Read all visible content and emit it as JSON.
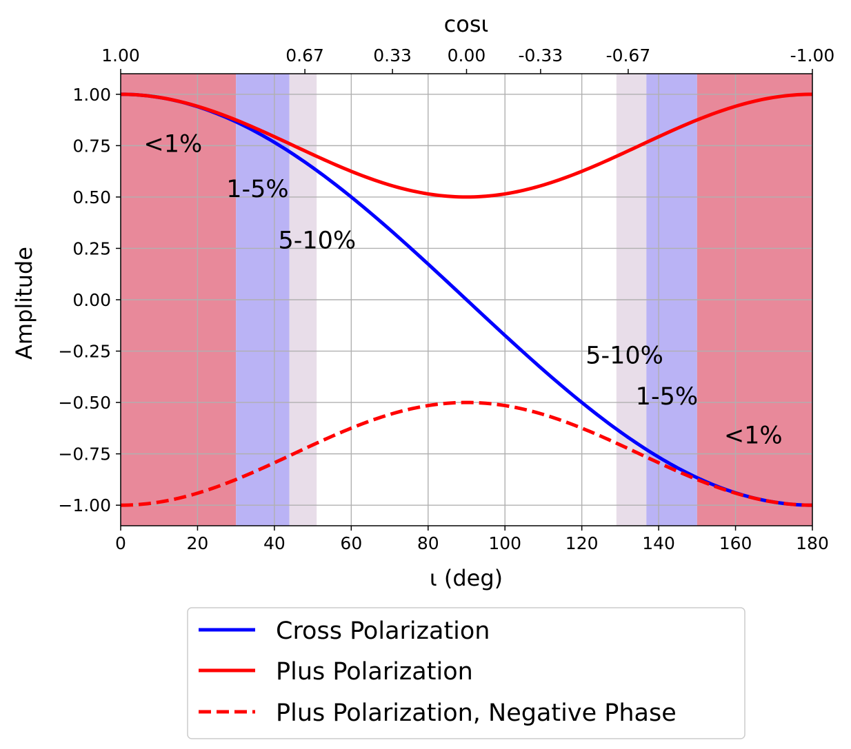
{
  "chart_data": {
    "type": "line",
    "xlabel": "ι (deg)",
    "ylabel": "Amplitude",
    "top_xlabel": "cosι",
    "xlim": [
      0,
      180
    ],
    "ylim": [
      -1.1,
      1.1
    ],
    "grid": true,
    "x_ticks": [
      "0",
      "20",
      "40",
      "60",
      "80",
      "100",
      "120",
      "140",
      "160",
      "180"
    ],
    "x_tick_values": [
      0,
      20,
      40,
      60,
      80,
      100,
      120,
      140,
      160,
      180
    ],
    "y_ticks": [
      "1.00",
      "0.75",
      "0.50",
      "0.25",
      "0.00",
      "−0.25",
      "−0.50",
      "−0.75",
      "−1.00"
    ],
    "y_tick_values": [
      1.0,
      0.75,
      0.5,
      0.25,
      0.0,
      -0.25,
      -0.5,
      -0.75,
      -1.0
    ],
    "top_ticks": [
      "1.00",
      "0.67",
      "0.33",
      "0.00",
      "-0.33",
      "-0.67",
      "-1.00"
    ],
    "top_tick_cos_values": [
      1.0,
      0.67,
      0.33,
      0.0,
      -0.33,
      -0.67,
      -1.0
    ],
    "bands": [
      {
        "from": 0,
        "to": 30,
        "color": "#e8899a",
        "label": "<1%",
        "label_pos": [
          6,
          0.72
        ]
      },
      {
        "from": 30,
        "to": 43.9,
        "color": "#bab3f5",
        "label": "1-5%",
        "label_pos": [
          27.5,
          0.5
        ]
      },
      {
        "from": 43.9,
        "to": 51,
        "color": "#e8dde9",
        "label": "5-10%",
        "label_pos": [
          41,
          0.25
        ]
      },
      {
        "from": 129,
        "to": 136.8,
        "color": "#e8dde9",
        "label": "5-10%",
        "label_pos": [
          121,
          -0.31
        ]
      },
      {
        "from": 136.8,
        "to": 150,
        "color": "#bab3f5",
        "label": "1-5%",
        "label_pos": [
          134,
          -0.51
        ]
      },
      {
        "from": 150,
        "to": 180,
        "color": "#e8899a",
        "label": "<1%",
        "label_pos": [
          157,
          -0.7
        ]
      }
    ],
    "series": [
      {
        "name": "Cross Polarization",
        "color": "#0000ff",
        "dashed": false,
        "x": [
          0,
          15,
          30,
          45,
          60,
          75,
          90,
          105,
          120,
          135,
          150,
          165,
          180
        ],
        "y": [
          1.0,
          0.966,
          0.866,
          0.707,
          0.5,
          0.259,
          0.0,
          -0.259,
          -0.5,
          -0.707,
          -0.866,
          -0.966,
          -1.0
        ]
      },
      {
        "name": "Plus Polarization",
        "color": "#ff0000",
        "dashed": false,
        "x": [
          0,
          15,
          30,
          45,
          60,
          75,
          90,
          105,
          120,
          135,
          150,
          165,
          180
        ],
        "y": [
          1.0,
          0.967,
          0.875,
          0.75,
          0.625,
          0.533,
          0.5,
          0.533,
          0.625,
          0.75,
          0.875,
          0.967,
          1.0
        ]
      },
      {
        "name": "Plus Polarization, Negative Phase",
        "color": "#ff0000",
        "dashed": true,
        "x": [
          0,
          15,
          30,
          45,
          60,
          75,
          90,
          105,
          120,
          135,
          150,
          165,
          180
        ],
        "y": [
          -1.0,
          -0.967,
          -0.875,
          -0.75,
          -0.625,
          -0.533,
          -0.5,
          -0.533,
          -0.625,
          -0.75,
          -0.875,
          -0.967,
          -1.0
        ]
      }
    ],
    "legend_position": "bottom-center"
  }
}
